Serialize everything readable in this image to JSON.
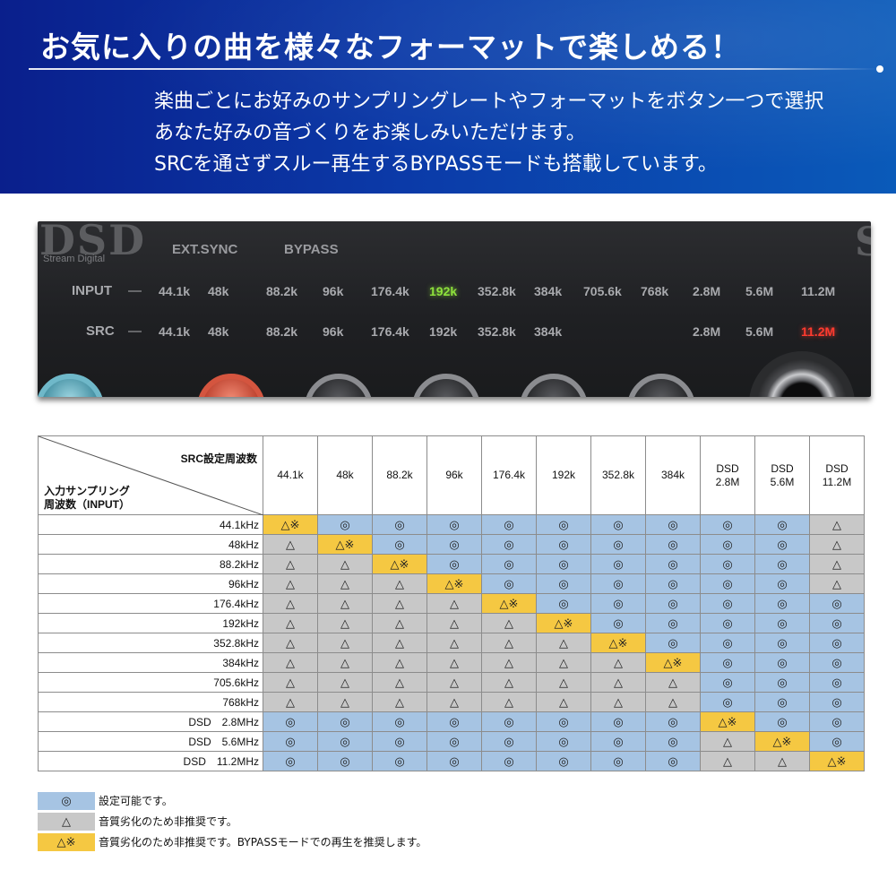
{
  "banner": {
    "title": "お気に入りの曲を様々なフォーマットで楽しめる！",
    "lines": [
      "楽曲ごとにお好みのサンプリングレートやフォーマットをボタン一つで選択",
      "あなた好みの音づくりをお楽しみいただけます。",
      "SRCを通さずスルー再生するBYPASSモードも搭載しています。"
    ],
    "colors": {
      "start": "#0a1f8c",
      "end": "#0a5ab9"
    }
  },
  "panel": {
    "logo": "DSD",
    "logo_sub": "Stream Digital",
    "right_logo": "S",
    "ext_sync": "EXT.SYNC",
    "bypass": "BYPASS",
    "input_label": "INPUT",
    "src_label": "SRC",
    "dash": "—",
    "input_rates": [
      "44.1k",
      "48k",
      "88.2k",
      "96k",
      "176.4k",
      "192k",
      "352.8k",
      "384k",
      "705.6k",
      "768k",
      "2.8M",
      "5.6M",
      "11.2M"
    ],
    "src_rates": [
      "44.1k",
      "48k",
      "88.2k",
      "96k",
      "176.4k",
      "192k",
      "352.8k",
      "384k",
      "",
      "",
      "2.8M",
      "5.6M",
      "11.2M"
    ],
    "lit_input": "192k",
    "lit_src": "11.2M",
    "lit_colors": {
      "green": "#8ee23c",
      "red": "#ff3b2f"
    }
  },
  "table": {
    "corner_top": "SRC設定周波数",
    "corner_bottom_1": "入力サンプリング",
    "corner_bottom_2": "周波数（INPUT）",
    "columns": [
      [
        "44.1k"
      ],
      [
        "48k"
      ],
      [
        "88.2k"
      ],
      [
        "96k"
      ],
      [
        "176.4k"
      ],
      [
        "192k"
      ],
      [
        "352.8k"
      ],
      [
        "384k"
      ],
      [
        "DSD",
        "2.8M"
      ],
      [
        "DSD",
        "5.6M"
      ],
      [
        "DSD",
        "11.2M"
      ]
    ],
    "rows": [
      {
        "label": "44.1kHz",
        "cells": [
          "B",
          "O",
          "O",
          "O",
          "O",
          "O",
          "O",
          "O",
          "O",
          "O",
          "T"
        ]
      },
      {
        "label": "48kHz",
        "cells": [
          "T",
          "B",
          "O",
          "O",
          "O",
          "O",
          "O",
          "O",
          "O",
          "O",
          "T"
        ]
      },
      {
        "label": "88.2kHz",
        "cells": [
          "T",
          "T",
          "B",
          "O",
          "O",
          "O",
          "O",
          "O",
          "O",
          "O",
          "T"
        ]
      },
      {
        "label": "96kHz",
        "cells": [
          "T",
          "T",
          "T",
          "B",
          "O",
          "O",
          "O",
          "O",
          "O",
          "O",
          "T"
        ]
      },
      {
        "label": "176.4kHz",
        "cells": [
          "T",
          "T",
          "T",
          "T",
          "B",
          "O",
          "O",
          "O",
          "O",
          "O",
          "O"
        ]
      },
      {
        "label": "192kHz",
        "cells": [
          "T",
          "T",
          "T",
          "T",
          "T",
          "B",
          "O",
          "O",
          "O",
          "O",
          "O"
        ]
      },
      {
        "label": "352.8kHz",
        "cells": [
          "T",
          "T",
          "T",
          "T",
          "T",
          "T",
          "B",
          "O",
          "O",
          "O",
          "O"
        ]
      },
      {
        "label": "384kHz",
        "cells": [
          "T",
          "T",
          "T",
          "T",
          "T",
          "T",
          "T",
          "B",
          "O",
          "O",
          "O"
        ]
      },
      {
        "label": "705.6kHz",
        "cells": [
          "T",
          "T",
          "T",
          "T",
          "T",
          "T",
          "T",
          "T",
          "O",
          "O",
          "O"
        ]
      },
      {
        "label": "768kHz",
        "cells": [
          "T",
          "T",
          "T",
          "T",
          "T",
          "T",
          "T",
          "T",
          "O",
          "O",
          "O"
        ]
      },
      {
        "label": "DSD　2.8MHz",
        "cells": [
          "O",
          "O",
          "O",
          "O",
          "O",
          "O",
          "O",
          "O",
          "B",
          "O",
          "O"
        ]
      },
      {
        "label": "DSD　5.6MHz",
        "cells": [
          "O",
          "O",
          "O",
          "O",
          "O",
          "O",
          "O",
          "O",
          "T",
          "B",
          "O"
        ]
      },
      {
        "label": "DSD　11.2MHz",
        "cells": [
          "O",
          "O",
          "O",
          "O",
          "O",
          "O",
          "O",
          "O",
          "T",
          "T",
          "B"
        ]
      }
    ],
    "symbols": {
      "O": "◎",
      "T": "△",
      "B": "△※"
    },
    "colors": {
      "O": "#a6c4e3",
      "T": "#c8c8c8",
      "B": "#f5c842"
    }
  },
  "legend": [
    {
      "key": "O",
      "symbol": "◎",
      "text": "設定可能です。"
    },
    {
      "key": "T",
      "symbol": "△",
      "text": "音質劣化のため非推奨です。"
    },
    {
      "key": "B",
      "symbol": "△※",
      "text": "音質劣化のため非推奨です。BYPASSモードでの再生を推奨します。"
    }
  ]
}
